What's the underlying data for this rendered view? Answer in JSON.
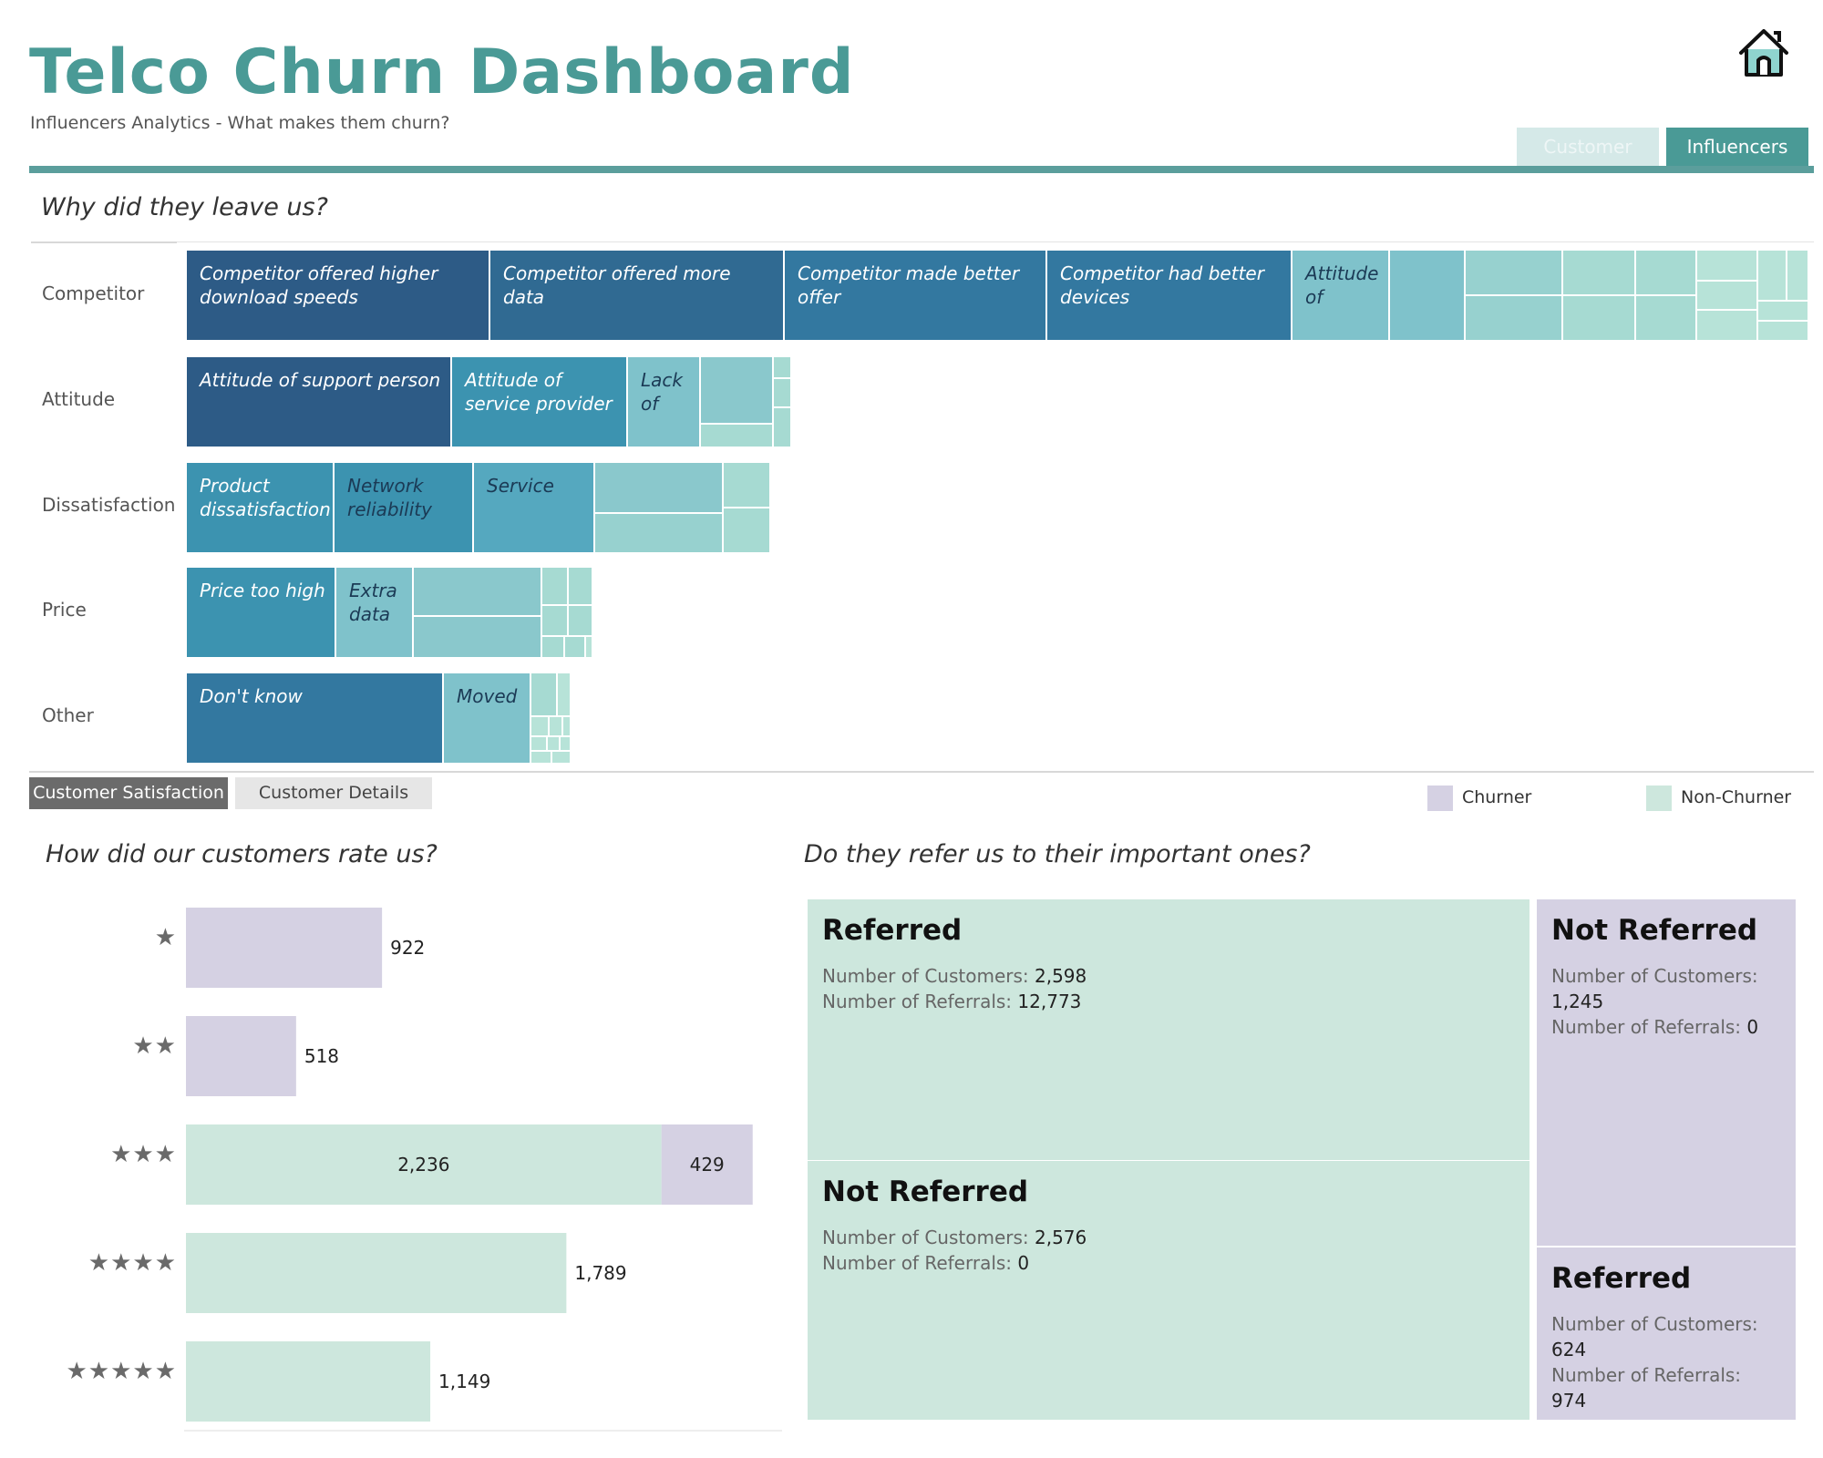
{
  "header": {
    "title": "Telco Churn Dashboard",
    "subtitle": "Influencers Analytics - What makes them churn?",
    "home_icon": "home-icon"
  },
  "nav_tabs": [
    {
      "label": "Customer",
      "active": false
    },
    {
      "label": "Influencers",
      "active": true
    }
  ],
  "churn_reasons": {
    "title": "Why did they leave us?",
    "categories": [
      {
        "label": "Competitor",
        "labels": [
          "Competitor offered higher download speeds",
          "Competitor offered more data",
          "Competitor made better offer",
          "Competitor had better devices",
          "Attitude of"
        ]
      },
      {
        "label": "Attitude",
        "labels": [
          "Attitude of support person",
          "Attitude of service provider",
          "Lack of"
        ]
      },
      {
        "label": "Dissatisfaction",
        "labels": [
          "Product dissatisfaction",
          "Network reliability",
          "Service"
        ]
      },
      {
        "label": "Price",
        "labels": [
          "Price too high",
          "Extra data"
        ]
      },
      {
        "label": "Other",
        "labels": [
          "Don't know",
          "Moved"
        ]
      }
    ]
  },
  "section_tabs": [
    {
      "label": "Customer Satisfaction",
      "active": true
    },
    {
      "label": "Customer Details",
      "active": false
    }
  ],
  "legend": [
    {
      "label": "Churner",
      "color": "#d5d1e3"
    },
    {
      "label": "Non-Churner",
      "color": "#cde7dd"
    }
  ],
  "colors": {
    "accent": "#4a9a96",
    "churner": "#d5d1e3",
    "non_churner": "#cde7dd",
    "text": "#333333"
  },
  "rating": {
    "title": "How did our customers rate us?",
    "star_labels": [
      "★",
      "★★",
      "★★★",
      "★★★★",
      "★★★★★"
    ]
  },
  "chart_data": [
    {
      "type": "bar",
      "orientation": "horizontal",
      "stacked": true,
      "categories": [
        "1 star",
        "2 stars",
        "3 stars",
        "4 stars",
        "5 stars"
      ],
      "series": [
        {
          "name": "Non-Churner",
          "values": [
            0,
            0,
            2236,
            1789,
            1149
          ]
        },
        {
          "name": "Churner",
          "values": [
            922,
            518,
            429,
            0,
            0
          ]
        }
      ],
      "data_labels": [
        "922",
        "518",
        "2,236",
        "429",
        "1,789",
        "1,149"
      ],
      "title": "How did our customers rate us?",
      "xlim": [
        0,
        3200
      ],
      "grid": false
    },
    {
      "type": "heatmap",
      "title": "Do they refer us to their important ones?",
      "tiles": [
        {
          "group": "Non-Churner",
          "name": "Referred",
          "customers": "2,598",
          "referrals": "12,773",
          "customers_value": 2598
        },
        {
          "group": "Non-Churner",
          "name": "Not Referred",
          "customers": "2,576",
          "referrals": "0",
          "customers_value": 2576
        },
        {
          "group": "Churner",
          "name": "Not Referred",
          "customers": "1,245",
          "referrals": "0",
          "customers_value": 1245
        },
        {
          "group": "Churner",
          "name": "Referred",
          "customers": "624",
          "referrals": "974",
          "customers_value": 624
        }
      ],
      "customers_label": "Number of Customers:",
      "referrals_label": "Number of Referrals:"
    }
  ]
}
